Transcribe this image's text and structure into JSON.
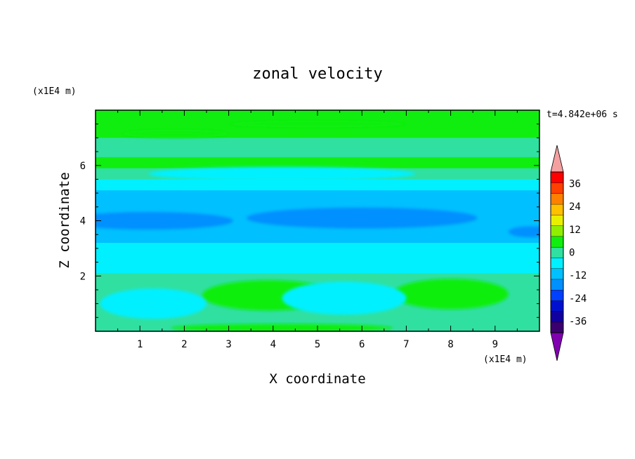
{
  "chart_data": {
    "type": "heatmap",
    "title": "zonal velocity",
    "xlabel": "X coordinate",
    "ylabel": "Z coordinate",
    "x_units": "(x1E4 m)",
    "y_units": "(x1E4 m)",
    "time_label": "t=4.842e+06 s",
    "xlim": [
      0,
      10
    ],
    "ylim": [
      0,
      8
    ],
    "x_ticks": [
      "1",
      "2",
      "3",
      "4",
      "5",
      "6",
      "7",
      "8",
      "9"
    ],
    "y_ticks": [
      "2",
      "4",
      "6"
    ],
    "colorbar": {
      "levels": [
        -42,
        -36,
        -30,
        -24,
        -18,
        -12,
        -6,
        0,
        6,
        12,
        18,
        24,
        30,
        36,
        42
      ],
      "tick_labels": [
        "36",
        "24",
        "12",
        "0",
        "-12",
        "-24",
        "-36"
      ],
      "tick_values": [
        36,
        24,
        12,
        0,
        -12,
        -24,
        -36
      ],
      "colors": [
        "#3a0070",
        "#1000a0",
        "#0010d0",
        "#0040ff",
        "#0090ff",
        "#00c0ff",
        "#00f0ff",
        "#30e0a0",
        "#10ee10",
        "#90ee00",
        "#e8f000",
        "#ffc000",
        "#ff8000",
        "#ff4000",
        "#ff0000"
      ],
      "under_color": "#8000b0",
      "over_color": "#f4a0a0"
    },
    "bands": [
      {
        "z": [
          7.6,
          8.0
        ],
        "value": 6
      },
      {
        "z": [
          7.0,
          7.6
        ],
        "value": 8
      },
      {
        "z": [
          6.6,
          7.0
        ],
        "value": 4
      },
      {
        "z": [
          6.3,
          6.6
        ],
        "value": 2
      },
      {
        "z": [
          5.9,
          6.3
        ],
        "value": 6
      },
      {
        "z": [
          5.5,
          5.9
        ],
        "value": 2
      },
      {
        "z": [
          5.1,
          5.5
        ],
        "value": -3
      },
      {
        "z": [
          4.4,
          5.1
        ],
        "value": -7
      },
      {
        "z": [
          3.5,
          4.4
        ],
        "value": -11
      },
      {
        "z": [
          3.2,
          3.5
        ],
        "value": -8
      },
      {
        "z": [
          2.6,
          3.2
        ],
        "value": -4
      },
      {
        "z": [
          2.1,
          2.6
        ],
        "value": -1
      },
      {
        "z": [
          1.6,
          2.1
        ],
        "value": 3
      },
      {
        "z": [
          0.5,
          1.6
        ],
        "value": 0
      },
      {
        "z": [
          0.2,
          0.5
        ],
        "value": 4
      },
      {
        "z": [
          0.0,
          0.2
        ],
        "value": 1
      }
    ],
    "features": [
      {
        "type": "blob",
        "x": 1.2,
        "z": 4.0,
        "rx": 1.9,
        "rz": 0.32,
        "value": -14
      },
      {
        "type": "blob",
        "x": 6.0,
        "z": 4.1,
        "rx": 2.6,
        "rz": 0.38,
        "value": -14
      },
      {
        "type": "blob",
        "x": 9.8,
        "z": 3.6,
        "rx": 0.5,
        "rz": 0.2,
        "value": -14
      },
      {
        "type": "blob",
        "x": 3.9,
        "z": 1.3,
        "rx": 1.5,
        "rz": 0.55,
        "value": 7
      },
      {
        "type": "blob",
        "x": 8.0,
        "z": 1.35,
        "rx": 1.3,
        "rz": 0.55,
        "value": 8
      },
      {
        "type": "blob",
        "x": 5.6,
        "z": 1.2,
        "rx": 1.4,
        "rz": 0.6,
        "value": -6
      },
      {
        "type": "blob",
        "x": 1.3,
        "z": 1.0,
        "rx": 1.2,
        "rz": 0.55,
        "value": -5
      },
      {
        "type": "blob",
        "x": 1.8,
        "z": 7.15,
        "rx": 1.2,
        "rz": 0.15,
        "value": 9
      },
      {
        "type": "blob",
        "x": 5.0,
        "z": 7.5,
        "rx": 2.0,
        "rz": 0.12,
        "value": 8
      },
      {
        "type": "blob",
        "x": 4.2,
        "z": 0.12,
        "rx": 2.5,
        "rz": 0.15,
        "value": 7
      },
      {
        "type": "blob",
        "x": 4.2,
        "z": 5.7,
        "rx": 3.0,
        "rz": 0.25,
        "value": -5
      }
    ]
  }
}
